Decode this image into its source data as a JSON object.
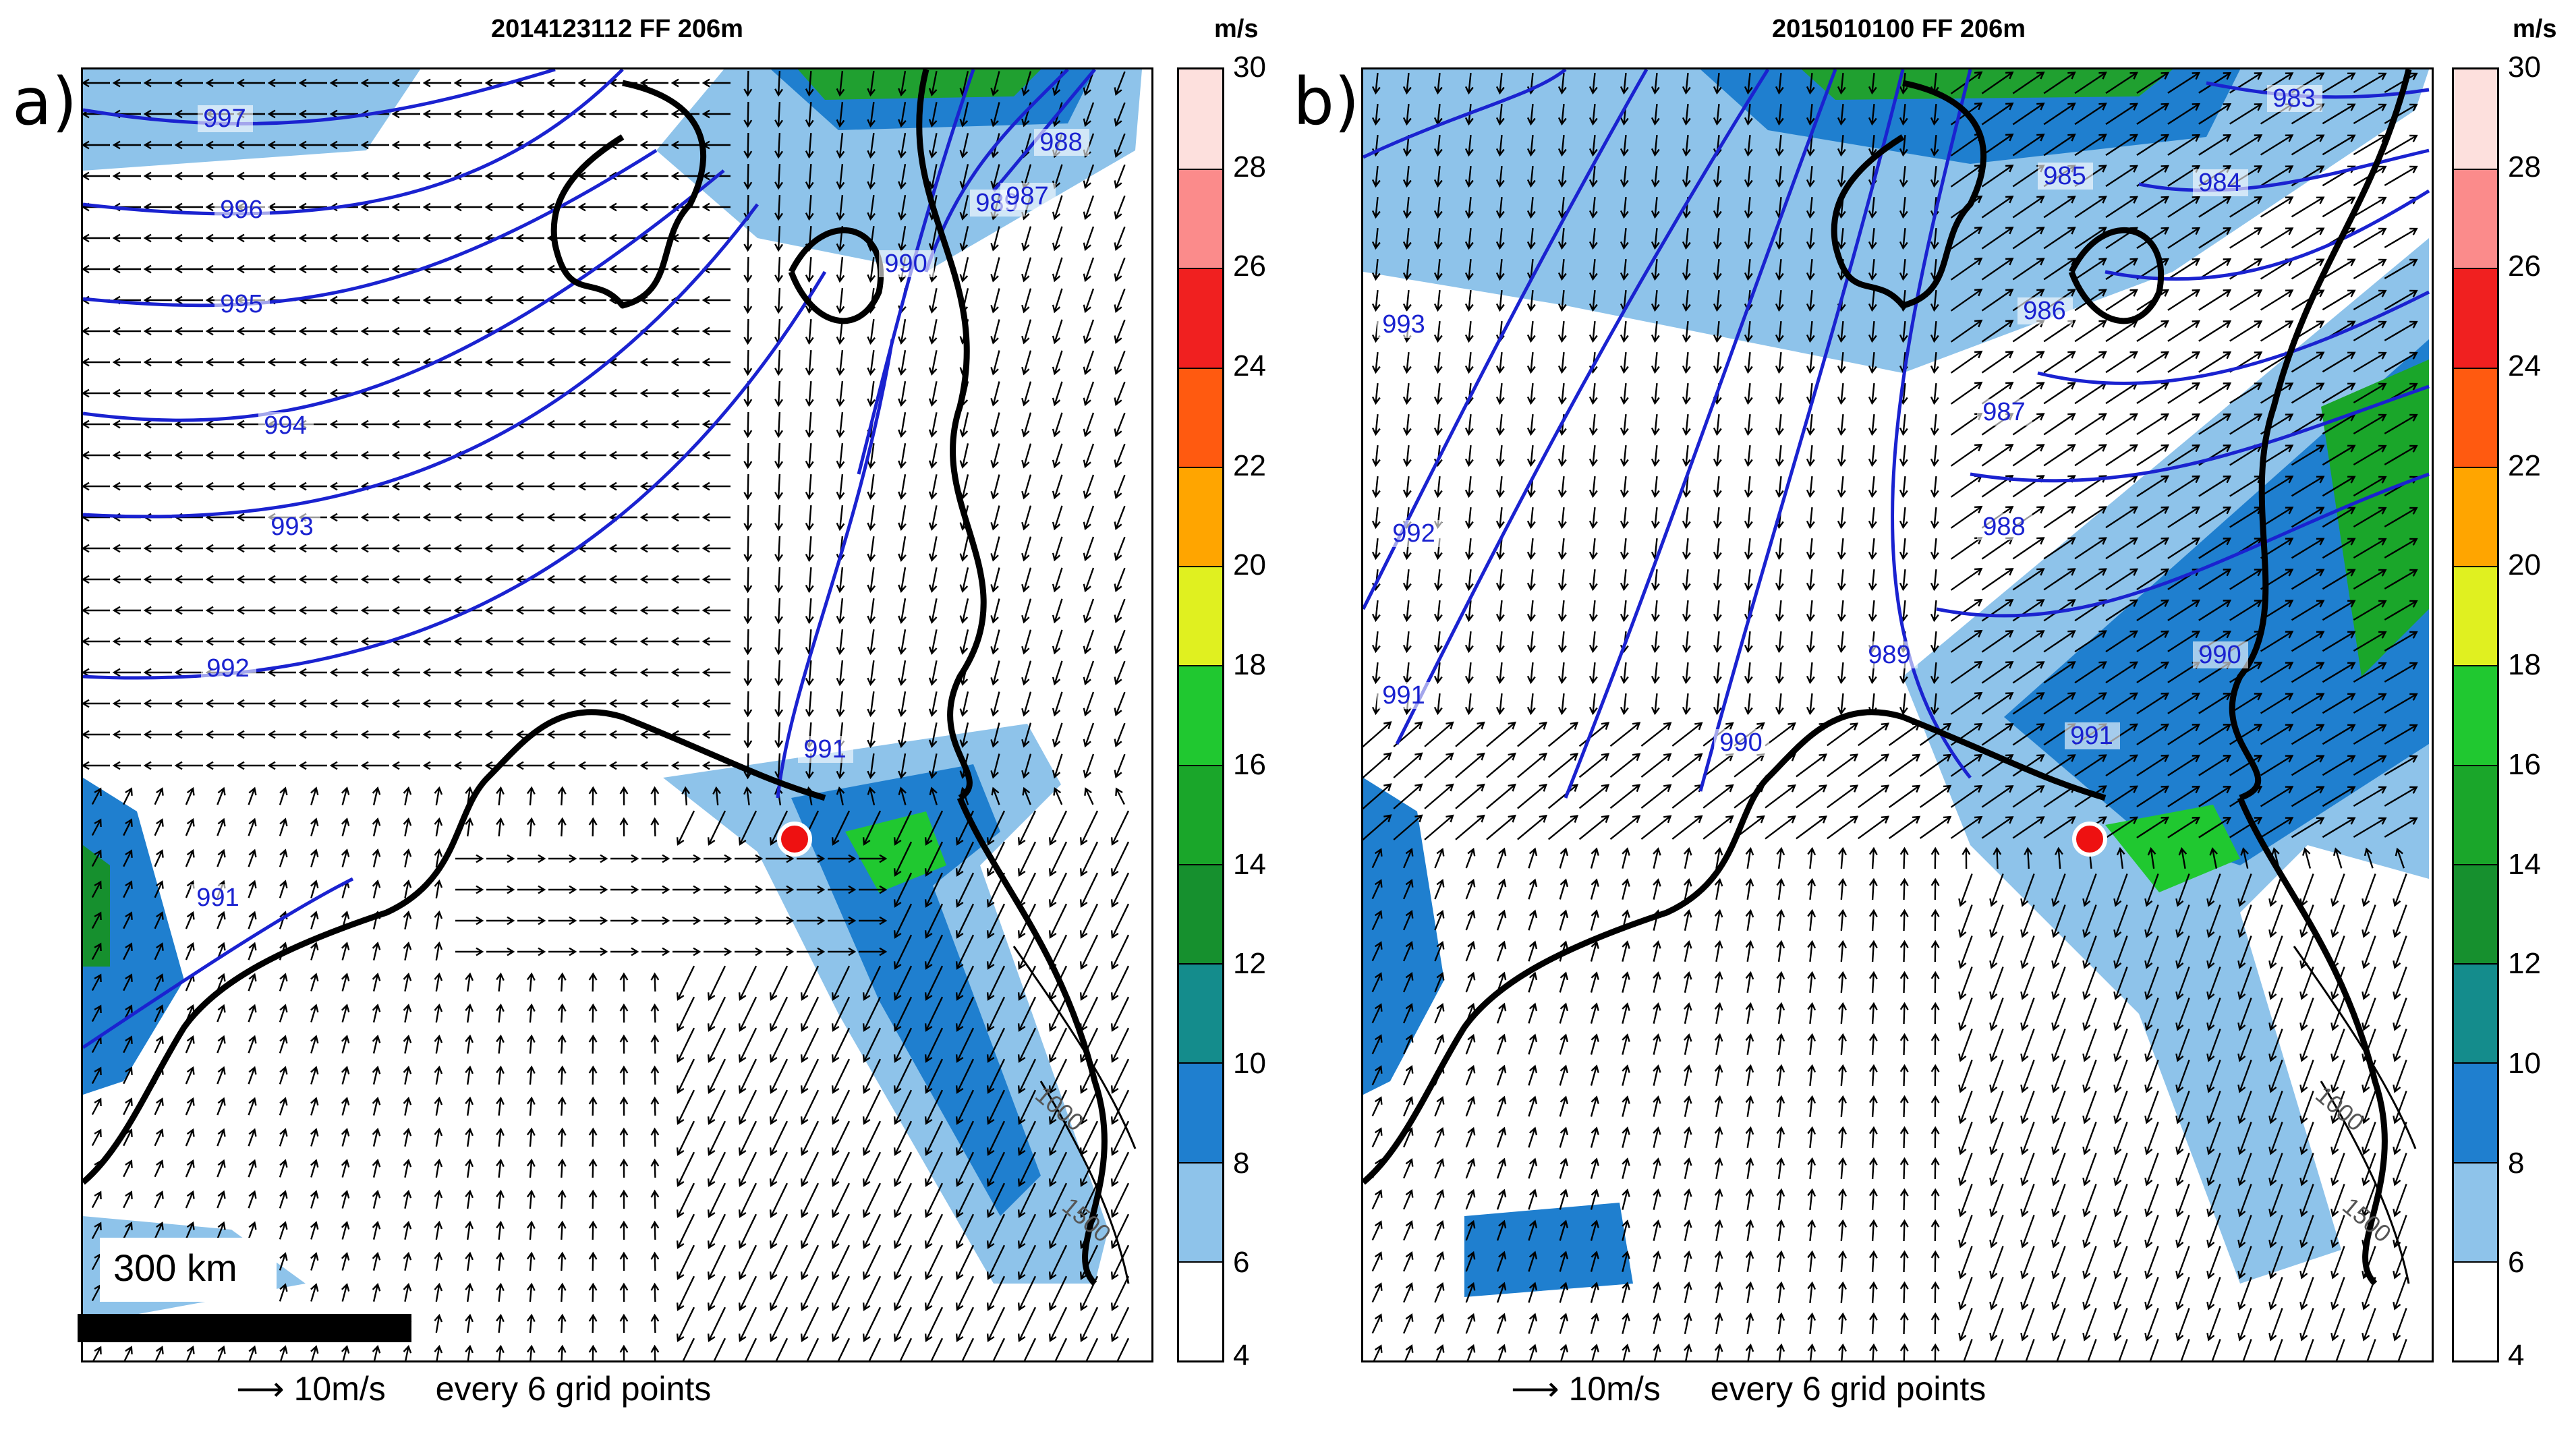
{
  "panels": [
    {
      "letter": "a)",
      "title": "2014123112 FF 206m",
      "unit": "m/s",
      "reference_vector": "10m/s",
      "grid_note": "every 6 grid points",
      "scale_label": "300 km",
      "isobars": [
        "997",
        "996",
        "995",
        "994",
        "993",
        "992",
        "991",
        "990",
        "989",
        "988",
        "987",
        "991"
      ],
      "contour_labels": [
        "1000",
        "1500"
      ]
    },
    {
      "letter": "b)",
      "title": "2015010100 FF 206m",
      "unit": "m/s",
      "reference_vector": "10m/s",
      "grid_note": "every 6 grid points",
      "isobars": [
        "993",
        "992",
        "991",
        "990",
        "989",
        "988",
        "987",
        "986",
        "985",
        "984",
        "983",
        "991",
        "990"
      ],
      "contour_labels": [
        "1000",
        "1500"
      ]
    }
  ],
  "colorbar": {
    "ticks": [
      "30",
      "28",
      "26",
      "24",
      "22",
      "20",
      "18",
      "16",
      "14",
      "12",
      "10",
      "8",
      "6",
      "4"
    ],
    "colors": [
      "#fde0dd",
      "#fb8b8b",
      "#f02020",
      "#ff5a10",
      "#ffa500",
      "#e0f020",
      "#20c830",
      "#1aa62a",
      "#16902e",
      "#148c8c",
      "#1f7fcf",
      "#8ec3ea",
      "#ffffff"
    ]
  }
}
